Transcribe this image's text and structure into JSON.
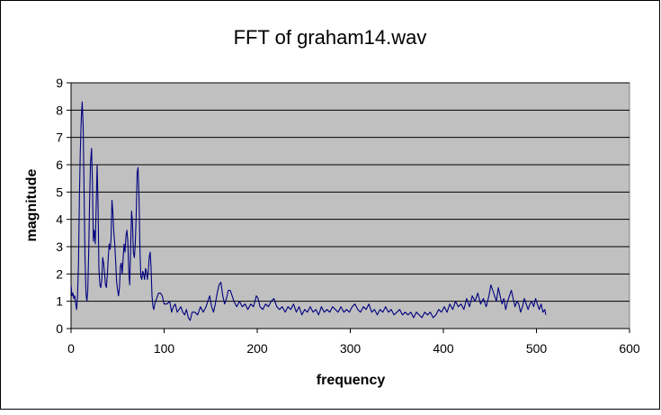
{
  "chart_data": {
    "type": "line",
    "title": "FFT of graham14.wav",
    "xlabel": "frequency",
    "ylabel": "magnitude",
    "xlim": [
      0,
      600
    ],
    "ylim": [
      0,
      9
    ],
    "x_ticks": [
      "0",
      "100",
      "200",
      "300",
      "400",
      "500",
      "600"
    ],
    "y_ticks": [
      "0",
      "1",
      "2",
      "3",
      "4",
      "5",
      "6",
      "7",
      "8",
      "9"
    ],
    "grid": "horizontal",
    "legend": "none",
    "series": [
      {
        "points": [
          [
            0,
            1.6
          ],
          [
            1,
            1.2
          ],
          [
            2,
            1.3
          ],
          [
            3,
            1.1
          ],
          [
            4,
            1.2
          ],
          [
            5,
            0.9
          ],
          [
            6,
            0.7
          ],
          [
            7,
            1.2
          ],
          [
            8,
            2.4
          ],
          [
            9,
            4.8
          ],
          [
            10,
            6.5
          ],
          [
            11,
            7.7
          ],
          [
            12,
            8.3
          ],
          [
            13,
            7.4
          ],
          [
            14,
            5.0
          ],
          [
            15,
            2.6
          ],
          [
            16,
            1.3
          ],
          [
            17,
            1.0
          ],
          [
            18,
            1.4
          ],
          [
            19,
            2.9
          ],
          [
            20,
            4.8
          ],
          [
            21,
            6.1
          ],
          [
            22,
            6.6
          ],
          [
            23,
            5.3
          ],
          [
            24,
            3.2
          ],
          [
            25,
            3.6
          ],
          [
            26,
            3.1
          ],
          [
            27,
            4.4
          ],
          [
            28,
            6.0
          ],
          [
            29,
            4.6
          ],
          [
            30,
            2.2
          ],
          [
            31,
            1.6
          ],
          [
            32,
            1.5
          ],
          [
            33,
            1.8
          ],
          [
            34,
            2.6
          ],
          [
            35,
            2.4
          ],
          [
            36,
            2.0
          ],
          [
            37,
            1.6
          ],
          [
            38,
            1.5
          ],
          [
            39,
            2.0
          ],
          [
            40,
            2.6
          ],
          [
            41,
            3.1
          ],
          [
            42,
            2.9
          ],
          [
            43,
            3.3
          ],
          [
            44,
            4.7
          ],
          [
            45,
            4.2
          ],
          [
            46,
            3.5
          ],
          [
            47,
            3.1
          ],
          [
            48,
            2.4
          ],
          [
            49,
            1.7
          ],
          [
            50,
            1.4
          ],
          [
            51,
            1.2
          ],
          [
            52,
            1.5
          ],
          [
            53,
            2.3
          ],
          [
            54,
            2.4
          ],
          [
            55,
            2.0
          ],
          [
            56,
            2.6
          ],
          [
            57,
            3.1
          ],
          [
            58,
            2.8
          ],
          [
            59,
            3.4
          ],
          [
            60,
            3.6
          ],
          [
            61,
            3.2
          ],
          [
            62,
            2.1
          ],
          [
            63,
            1.6
          ],
          [
            64,
            2.9
          ],
          [
            65,
            4.3
          ],
          [
            66,
            3.9
          ],
          [
            67,
            2.8
          ],
          [
            68,
            2.6
          ],
          [
            69,
            3.1
          ],
          [
            70,
            4.1
          ],
          [
            71,
            5.7
          ],
          [
            72,
            5.9
          ],
          [
            73,
            4.8
          ],
          [
            74,
            2.9
          ],
          [
            75,
            1.9
          ],
          [
            76,
            1.8
          ],
          [
            77,
            2.1
          ],
          [
            78,
            2.0
          ],
          [
            79,
            1.8
          ],
          [
            80,
            2.2
          ],
          [
            81,
            2.1
          ],
          [
            82,
            1.8
          ],
          [
            83,
            2.1
          ],
          [
            84,
            2.6
          ],
          [
            85,
            2.8
          ],
          [
            86,
            2.2
          ],
          [
            87,
            1.2
          ],
          [
            88,
            0.8
          ],
          [
            89,
            0.7
          ],
          [
            90,
            0.9
          ],
          [
            92,
            1.1
          ],
          [
            94,
            1.3
          ],
          [
            96,
            1.3
          ],
          [
            98,
            1.2
          ],
          [
            100,
            0.9
          ],
          [
            103,
            0.9
          ],
          [
            106,
            1.0
          ],
          [
            108,
            0.6
          ],
          [
            110,
            0.8
          ],
          [
            112,
            0.9
          ],
          [
            114,
            0.6
          ],
          [
            116,
            0.7
          ],
          [
            118,
            0.8
          ],
          [
            120,
            0.6
          ],
          [
            122,
            0.5
          ],
          [
            124,
            0.7
          ],
          [
            126,
            0.4
          ],
          [
            128,
            0.3
          ],
          [
            130,
            0.6
          ],
          [
            133,
            0.6
          ],
          [
            136,
            0.5
          ],
          [
            139,
            0.8
          ],
          [
            142,
            0.6
          ],
          [
            145,
            0.8
          ],
          [
            147,
            1.0
          ],
          [
            149,
            1.2
          ],
          [
            151,
            0.8
          ],
          [
            153,
            0.6
          ],
          [
            155,
            0.9
          ],
          [
            157,
            1.3
          ],
          [
            159,
            1.6
          ],
          [
            161,
            1.7
          ],
          [
            163,
            1.2
          ],
          [
            165,
            0.9
          ],
          [
            167,
            1.1
          ],
          [
            169,
            1.4
          ],
          [
            171,
            1.4
          ],
          [
            173,
            1.2
          ],
          [
            175,
            1.0
          ],
          [
            178,
            0.8
          ],
          [
            181,
            1.0
          ],
          [
            184,
            0.8
          ],
          [
            187,
            0.9
          ],
          [
            190,
            0.7
          ],
          [
            193,
            0.9
          ],
          [
            196,
            0.8
          ],
          [
            199,
            1.2
          ],
          [
            201,
            1.1
          ],
          [
            203,
            0.8
          ],
          [
            206,
            0.7
          ],
          [
            209,
            0.9
          ],
          [
            212,
            0.8
          ],
          [
            215,
            1.0
          ],
          [
            218,
            1.1
          ],
          [
            221,
            0.8
          ],
          [
            224,
            0.7
          ],
          [
            227,
            0.8
          ],
          [
            230,
            0.6
          ],
          [
            233,
            0.8
          ],
          [
            236,
            0.7
          ],
          [
            239,
            0.9
          ],
          [
            242,
            0.6
          ],
          [
            245,
            0.8
          ],
          [
            248,
            0.5
          ],
          [
            251,
            0.7
          ],
          [
            254,
            0.6
          ],
          [
            257,
            0.8
          ],
          [
            260,
            0.6
          ],
          [
            263,
            0.7
          ],
          [
            266,
            0.5
          ],
          [
            269,
            0.8
          ],
          [
            272,
            0.6
          ],
          [
            275,
            0.7
          ],
          [
            278,
            0.6
          ],
          [
            281,
            0.8
          ],
          [
            284,
            0.7
          ],
          [
            287,
            0.6
          ],
          [
            290,
            0.8
          ],
          [
            293,
            0.6
          ],
          [
            296,
            0.7
          ],
          [
            299,
            0.6
          ],
          [
            302,
            0.8
          ],
          [
            305,
            0.9
          ],
          [
            308,
            0.7
          ],
          [
            311,
            0.6
          ],
          [
            314,
            0.8
          ],
          [
            317,
            0.7
          ],
          [
            320,
            0.9
          ],
          [
            323,
            0.6
          ],
          [
            326,
            0.7
          ],
          [
            329,
            0.5
          ],
          [
            332,
            0.7
          ],
          [
            335,
            0.6
          ],
          [
            338,
            0.8
          ],
          [
            341,
            0.6
          ],
          [
            344,
            0.7
          ],
          [
            347,
            0.5
          ],
          [
            350,
            0.6
          ],
          [
            353,
            0.7
          ],
          [
            356,
            0.5
          ],
          [
            359,
            0.6
          ],
          [
            362,
            0.5
          ],
          [
            365,
            0.6
          ],
          [
            368,
            0.4
          ],
          [
            371,
            0.6
          ],
          [
            374,
            0.5
          ],
          [
            377,
            0.4
          ],
          [
            380,
            0.6
          ],
          [
            383,
            0.5
          ],
          [
            386,
            0.6
          ],
          [
            389,
            0.4
          ],
          [
            392,
            0.5
          ],
          [
            395,
            0.7
          ],
          [
            398,
            0.6
          ],
          [
            401,
            0.8
          ],
          [
            404,
            0.6
          ],
          [
            407,
            0.9
          ],
          [
            410,
            0.7
          ],
          [
            413,
            1.0
          ],
          [
            416,
            0.8
          ],
          [
            419,
            0.9
          ],
          [
            422,
            0.7
          ],
          [
            425,
            1.1
          ],
          [
            428,
            0.8
          ],
          [
            431,
            1.2
          ],
          [
            434,
            1.0
          ],
          [
            437,
            1.3
          ],
          [
            440,
            0.9
          ],
          [
            443,
            1.1
          ],
          [
            446,
            0.8
          ],
          [
            449,
            1.2
          ],
          [
            451,
            1.6
          ],
          [
            453,
            1.4
          ],
          [
            455,
            1.2
          ],
          [
            457,
            1.0
          ],
          [
            459,
            1.5
          ],
          [
            461,
            1.2
          ],
          [
            463,
            0.9
          ],
          [
            465,
            1.1
          ],
          [
            467,
            0.7
          ],
          [
            469,
            1.0
          ],
          [
            471,
            1.2
          ],
          [
            473,
            1.4
          ],
          [
            475,
            1.1
          ],
          [
            477,
            0.8
          ],
          [
            479,
            1.0
          ],
          [
            481,
            0.9
          ],
          [
            483,
            0.6
          ],
          [
            485,
            0.8
          ],
          [
            487,
            1.1
          ],
          [
            489,
            0.9
          ],
          [
            491,
            0.7
          ],
          [
            493,
            0.9
          ],
          [
            495,
            1.0
          ],
          [
            497,
            0.8
          ],
          [
            499,
            1.1
          ],
          [
            501,
            0.9
          ],
          [
            503,
            0.7
          ],
          [
            505,
            0.9
          ],
          [
            507,
            0.6
          ],
          [
            509,
            0.7
          ],
          [
            510,
            0.5
          ]
        ]
      }
    ]
  },
  "colors": {
    "plot_background": "#c0c0c0",
    "gridline": "#000000",
    "series_line": "#000080",
    "page_background": "#ffffff",
    "frame": "#000000"
  }
}
